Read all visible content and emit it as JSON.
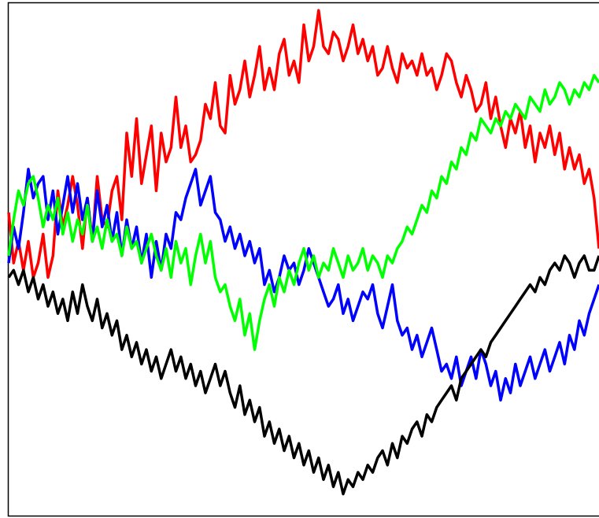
{
  "chart_data": {
    "type": "line",
    "title": "",
    "xlabel": "",
    "ylabel": "",
    "xlim": [
      0,
      120
    ],
    "ylim": [
      -35,
      36
    ],
    "grid": false,
    "legend": "none",
    "x_step": 1,
    "series": [
      {
        "color": "#ff0000",
        "values": [
          7,
          0,
          3,
          -1,
          3,
          -2,
          0,
          4,
          -2,
          1,
          10,
          5,
          8,
          12,
          8,
          2,
          9,
          3,
          12,
          6,
          5,
          10,
          12,
          6,
          18,
          12,
          20,
          11,
          15,
          19,
          10,
          18,
          14,
          16,
          23,
          16,
          19,
          14,
          15,
          17,
          22,
          20,
          25,
          19,
          18,
          26,
          22,
          24,
          28,
          23,
          26,
          30,
          24,
          27,
          24,
          29,
          31,
          26,
          28,
          25,
          33,
          28,
          30,
          35,
          30,
          29,
          32,
          31,
          28,
          30,
          33,
          29,
          31,
          28,
          30,
          26,
          27,
          30,
          27,
          25,
          29,
          27,
          28,
          26,
          29,
          26,
          27,
          24,
          26,
          29,
          28,
          25,
          23,
          26,
          24,
          21,
          22,
          25,
          20,
          23,
          19,
          16,
          20,
          18,
          21,
          16,
          19,
          14,
          18,
          16,
          19,
          15,
          18,
          13,
          16,
          13,
          15,
          11,
          13,
          9,
          2
        ]
      },
      {
        "color": "#0000ff",
        "values": [
          0,
          5,
          2,
          7,
          13,
          9,
          11,
          12,
          6,
          10,
          4,
          8,
          12,
          7,
          11,
          6,
          9,
          3,
          10,
          5,
          8,
          3,
          7,
          1,
          6,
          2,
          5,
          0,
          4,
          -2,
          3,
          -1,
          4,
          2,
          7,
          6,
          9,
          11,
          13,
          8,
          10,
          12,
          7,
          6,
          3,
          5,
          2,
          4,
          1,
          3,
          0,
          2,
          -3,
          -1,
          -4,
          -2,
          1,
          -1,
          0,
          -3,
          -1,
          2,
          0,
          -2,
          -4,
          -6,
          -5,
          -3,
          -7,
          -5,
          -8,
          -6,
          -4,
          -5,
          -3,
          -7,
          -9,
          -6,
          -3,
          -8,
          -10,
          -9,
          -12,
          -10,
          -13,
          -11,
          -9,
          -12,
          -15,
          -14,
          -16,
          -13,
          -17,
          -15,
          -13,
          -16,
          -12,
          -14,
          -17,
          -15,
          -19,
          -16,
          -18,
          -14,
          -17,
          -15,
          -13,
          -16,
          -14,
          -12,
          -15,
          -13,
          -11,
          -14,
          -10,
          -12,
          -8,
          -10,
          -7,
          -5,
          -3
        ]
      },
      {
        "color": "#00ff00",
        "values": [
          1,
          6,
          10,
          8,
          11,
          12,
          9,
          5,
          8,
          6,
          9,
          4,
          7,
          3,
          6,
          4,
          8,
          3,
          5,
          2,
          6,
          3,
          4,
          1,
          5,
          2,
          3,
          0,
          2,
          4,
          1,
          -1,
          2,
          -2,
          3,
          0,
          2,
          -3,
          1,
          4,
          0,
          3,
          -2,
          -4,
          -3,
          -6,
          -8,
          -5,
          -10,
          -7,
          -12,
          -8,
          -5,
          -3,
          -6,
          -2,
          -4,
          -1,
          -3,
          0,
          2,
          -1,
          1,
          -2,
          0,
          -1,
          2,
          0,
          -2,
          1,
          -1,
          0,
          2,
          -1,
          1,
          0,
          -2,
          1,
          0,
          2,
          3,
          5,
          4,
          6,
          8,
          7,
          10,
          9,
          12,
          11,
          14,
          13,
          16,
          15,
          18,
          17,
          20,
          19,
          18,
          20,
          19,
          21,
          20,
          22,
          21,
          20,
          23,
          22,
          21,
          24,
          22,
          23,
          25,
          24,
          22,
          24,
          23,
          25,
          24,
          26,
          25
        ]
      },
      {
        "color": "#000000",
        "values": [
          -2,
          -1,
          -3,
          -1,
          -4,
          -2,
          -5,
          -3,
          -6,
          -4,
          -7,
          -5,
          -8,
          -4,
          -7,
          -3,
          -6,
          -8,
          -5,
          -9,
          -7,
          -10,
          -8,
          -12,
          -10,
          -13,
          -11,
          -14,
          -12,
          -15,
          -13,
          -16,
          -14,
          -12,
          -15,
          -13,
          -16,
          -14,
          -17,
          -15,
          -18,
          -16,
          -14,
          -17,
          -15,
          -18,
          -20,
          -17,
          -21,
          -19,
          -22,
          -20,
          -24,
          -22,
          -25,
          -23,
          -26,
          -24,
          -27,
          -25,
          -28,
          -26,
          -29,
          -27,
          -30,
          -28,
          -31,
          -29,
          -32,
          -30,
          -31,
          -29,
          -30,
          -28,
          -29,
          -27,
          -26,
          -28,
          -25,
          -27,
          -24,
          -25,
          -23,
          -22,
          -24,
          -21,
          -22,
          -20,
          -19,
          -18,
          -17,
          -19,
          -16,
          -15,
          -14,
          -13,
          -12,
          -13,
          -11,
          -10,
          -9,
          -8,
          -7,
          -6,
          -5,
          -4,
          -3,
          -4,
          -2,
          -3,
          -1,
          0,
          -1,
          1,
          0,
          -2,
          0,
          1,
          -1,
          -1,
          1
        ]
      }
    ]
  }
}
